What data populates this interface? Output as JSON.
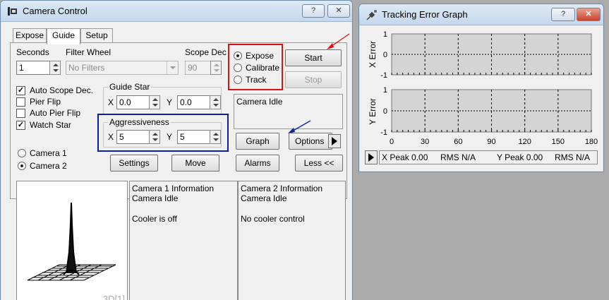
{
  "camera_window": {
    "title": "Camera Control",
    "help_button": "?",
    "close_button": "✕",
    "tabs": [
      "Expose",
      "Guide",
      "Setup"
    ],
    "active_tab": "Guide",
    "seconds": {
      "label": "Seconds",
      "value": "1"
    },
    "filter_wheel": {
      "label": "Filter Wheel",
      "value": "No Filters"
    },
    "scope_dec": {
      "label": "Scope Dec",
      "value": "90"
    },
    "mode_radios": [
      {
        "label": "Expose",
        "selected": true
      },
      {
        "label": "Calibrate",
        "selected": false
      },
      {
        "label": "Track",
        "selected": false
      }
    ],
    "start_button": "Start",
    "stop_button": "Stop",
    "checkboxes": [
      {
        "label": "Auto Scope Dec.",
        "checked": true
      },
      {
        "label": "Pier Flip",
        "checked": false
      },
      {
        "label": "Auto Pier Flip",
        "checked": false
      },
      {
        "label": "Watch Star",
        "checked": true
      }
    ],
    "guide_star": {
      "label": "Guide Star",
      "x_label": "X",
      "x_value": "0.0",
      "y_label": "Y",
      "y_value": "0.0"
    },
    "aggressiveness": {
      "label": "Aggressiveness",
      "x_label": "X",
      "x_value": "5",
      "y_label": "Y",
      "y_value": "5"
    },
    "status_text": "Camera Idle",
    "graph_button": "Graph",
    "options_button": "Options",
    "camera_radios": [
      {
        "label": "Camera 1",
        "selected": false
      },
      {
        "label": "Camera 2",
        "selected": true
      }
    ],
    "settings_button": "Settings",
    "move_button": "Move",
    "alarms_button": "Alarms",
    "less_button": "Less <<",
    "view_label": "3D[1]",
    "camera1_info": {
      "title": "Camera 1 Information",
      "status": "Camera Idle",
      "cooler": "Cooler is off"
    },
    "camera2_info": {
      "title": "Camera 2 Information",
      "status": "Camera Idle",
      "cooler": "No cooler control"
    },
    "colors": {
      "red_highlight": "#e01010",
      "blue_highlight": "#0b1fa8"
    }
  },
  "graph_window": {
    "title": "Tracking Error Graph",
    "help_button": "?",
    "close_button": "✕",
    "x_axis_label": "X Error",
    "y_axis_label": "Y Error",
    "y_ticks": [
      "1",
      "0",
      "-1"
    ],
    "x_ticks": [
      "0",
      "30",
      "60",
      "90",
      "120",
      "150",
      "180"
    ],
    "x_peak": "X Peak 0.00",
    "x_rms": "RMS N/A",
    "y_peak": "Y Peak 0.00",
    "y_rms": "RMS N/A"
  }
}
